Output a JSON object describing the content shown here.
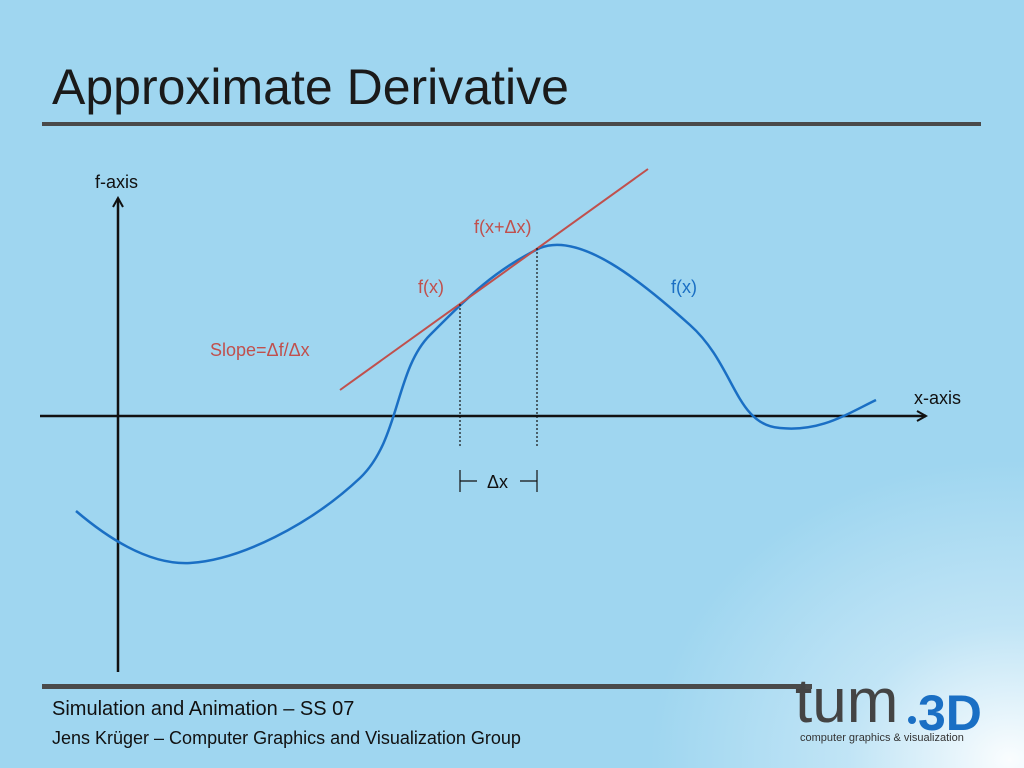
{
  "slide": {
    "title": "Approximate Derivative"
  },
  "diagram": {
    "y_axis_label": "f-axis",
    "x_axis_label": "x-axis",
    "curve_label": "f(x)",
    "point1_label": "f(x)",
    "point2_label": "f(x+Δx)",
    "slope_label": "Slope=Δf/Δx",
    "delta_label": "Δx",
    "colors": {
      "curve": "#1a6fc4",
      "secant": "#c0504d",
      "axes": "#111111"
    }
  },
  "footer": {
    "course": "Simulation and Animation – SS 07",
    "author": "Jens Krüger – Computer Graphics and Visualization Group"
  },
  "logo": {
    "name_part1": "tum",
    "name_part2": "3D",
    "caption": "computer graphics & visualization"
  }
}
